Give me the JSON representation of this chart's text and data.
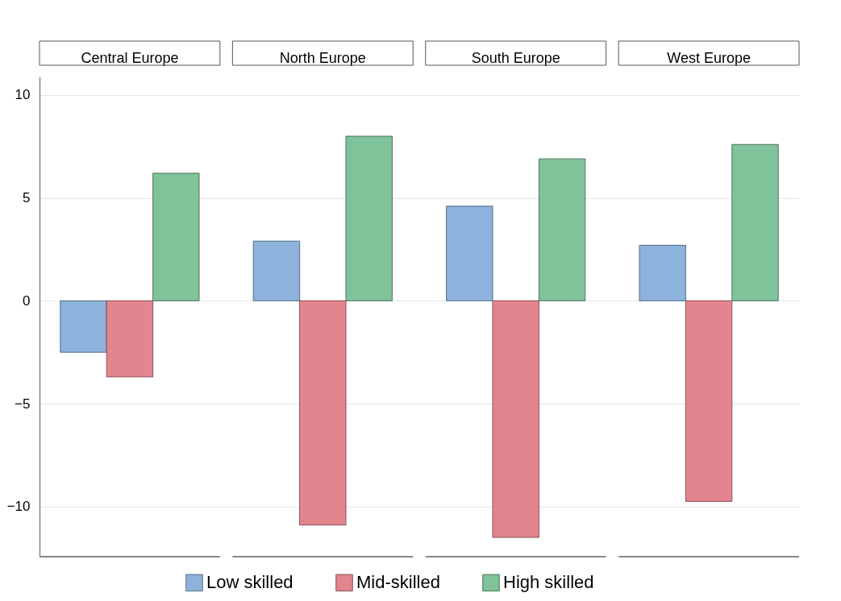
{
  "chart_data": {
    "type": "bar",
    "categories": [
      "Central Europe",
      "North Europe",
      "South Europe",
      "West Europe"
    ],
    "series": [
      {
        "name": "Low skilled",
        "color": "#8db3dd",
        "values": [
          -2.5,
          2.9,
          4.6,
          2.7
        ]
      },
      {
        "name": "Mid-skilled",
        "color": "#e3858f",
        "values": [
          -3.7,
          -10.9,
          -11.5,
          -9.75
        ]
      },
      {
        "name": "High skilled",
        "color": "#80c29a",
        "values": [
          6.2,
          8.0,
          6.9,
          7.6
        ]
      }
    ],
    "ylim": [
      -12.4,
      10.9
    ],
    "yticks": [
      -10,
      -5,
      0,
      5,
      10
    ],
    "grid": "y",
    "legend": "bottom"
  }
}
